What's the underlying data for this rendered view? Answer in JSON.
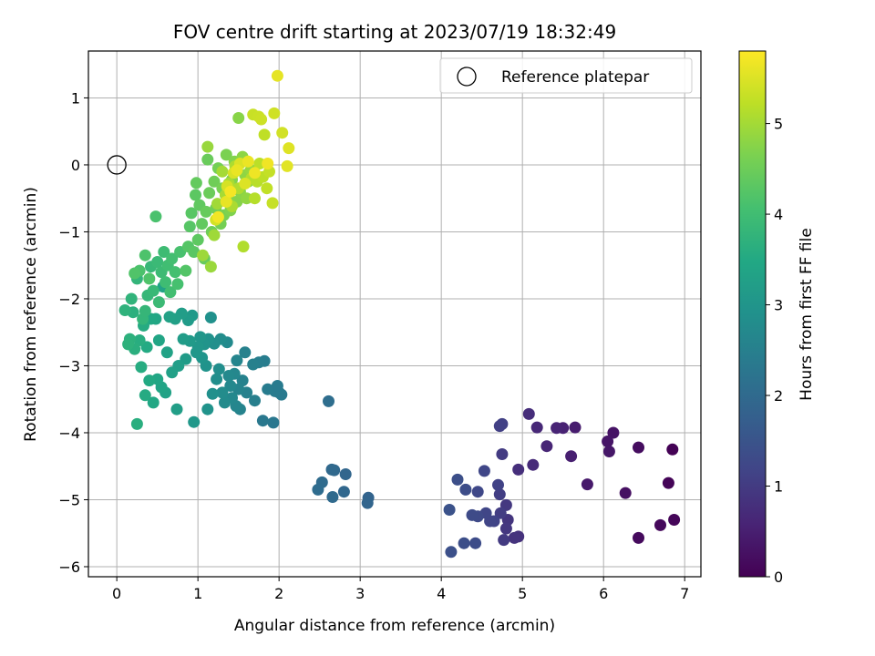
{
  "chart_data": {
    "type": "scatter",
    "title": "FOV centre drift starting at 2023/07/19 18:32:49",
    "xlabel": "Angular distance from reference (arcmin)",
    "ylabel": "Rotation from reference (arcmin)",
    "colorbar_label": "Hours from first FF file",
    "colormap": "viridis",
    "xlim": [
      -0.35,
      7.2
    ],
    "ylim": [
      -6.15,
      1.7
    ],
    "xticks": [
      0,
      1,
      2,
      3,
      4,
      5,
      6,
      7
    ],
    "yticks": [
      -6,
      -5,
      -4,
      -3,
      -2,
      -1,
      0,
      1
    ],
    "clim": [
      0,
      5.8
    ],
    "cticks": [
      0,
      1,
      2,
      3,
      4,
      5
    ],
    "grid": true,
    "legend": {
      "placement": "top-right",
      "entries": [
        "Reference platepar"
      ]
    },
    "reference": {
      "x": 0,
      "y": 0
    },
    "points": [
      [
        6.85,
        -4.25,
        0.02
      ],
      [
        6.8,
        -4.75,
        0.05
      ],
      [
        6.87,
        -5.3,
        0.08
      ],
      [
        6.7,
        -5.38,
        0.12
      ],
      [
        6.43,
        -5.57,
        0.15
      ],
      [
        6.43,
        -4.22,
        0.2
      ],
      [
        6.27,
        -4.9,
        0.25
      ],
      [
        6.12,
        -4.0,
        0.3
      ],
      [
        6.05,
        -4.13,
        0.33
      ],
      [
        6.07,
        -4.28,
        0.36
      ],
      [
        5.8,
        -4.77,
        0.4
      ],
      [
        5.65,
        -3.92,
        0.45
      ],
      [
        5.6,
        -4.35,
        0.5
      ],
      [
        5.5,
        -3.93,
        0.55
      ],
      [
        5.42,
        -3.93,
        0.58
      ],
      [
        5.3,
        -4.2,
        0.62
      ],
      [
        5.18,
        -3.92,
        0.66
      ],
      [
        5.13,
        -4.48,
        0.7
      ],
      [
        5.08,
        -3.72,
        0.74
      ],
      [
        4.95,
        -4.55,
        0.78
      ],
      [
        4.95,
        -5.55,
        0.82
      ],
      [
        4.9,
        -5.57,
        0.85
      ],
      [
        4.82,
        -5.3,
        0.88
      ],
      [
        4.8,
        -5.43,
        0.92
      ],
      [
        4.8,
        -5.08,
        0.95
      ],
      [
        4.77,
        -5.6,
        0.98
      ],
      [
        4.75,
        -4.32,
        1.0
      ],
      [
        4.73,
        -5.2,
        1.03
      ],
      [
        4.72,
        -4.92,
        1.06
      ],
      [
        4.72,
        -3.9,
        1.08
      ],
      [
        4.75,
        -3.87,
        1.1
      ],
      [
        4.7,
        -4.78,
        1.12
      ],
      [
        4.65,
        -5.32,
        1.15
      ],
      [
        4.6,
        -5.32,
        1.18
      ],
      [
        4.55,
        -5.2,
        1.2
      ],
      [
        4.53,
        -4.57,
        1.22
      ],
      [
        4.45,
        -4.88,
        1.25
      ],
      [
        4.45,
        -5.25,
        1.28
      ],
      [
        4.38,
        -5.23,
        1.3
      ],
      [
        4.42,
        -5.65,
        1.33
      ],
      [
        4.3,
        -4.85,
        1.36
      ],
      [
        4.28,
        -5.65,
        1.38
      ],
      [
        4.2,
        -4.7,
        1.4
      ],
      [
        4.12,
        -5.78,
        1.42
      ],
      [
        4.1,
        -5.15,
        1.45
      ],
      [
        3.1,
        -4.97,
        1.85
      ],
      [
        3.09,
        -5.05,
        1.88
      ],
      [
        2.82,
        -4.62,
        1.9
      ],
      [
        2.8,
        -4.88,
        1.93
      ],
      [
        2.68,
        -4.56,
        1.95
      ],
      [
        2.65,
        -4.55,
        1.97
      ],
      [
        2.66,
        -4.96,
        1.99
      ],
      [
        2.53,
        -4.74,
        2.02
      ],
      [
        2.48,
        -4.85,
        2.04
      ],
      [
        2.61,
        -3.53,
        2.08
      ],
      [
        1.93,
        -3.85,
        2.3
      ],
      [
        1.8,
        -3.82,
        2.32
      ],
      [
        2.0,
        -3.4,
        2.34
      ],
      [
        2.03,
        -3.43,
        2.36
      ],
      [
        1.95,
        -3.38,
        2.38
      ],
      [
        1.98,
        -3.3,
        2.4
      ],
      [
        1.86,
        -3.35,
        2.42
      ],
      [
        1.82,
        -2.93,
        2.44
      ],
      [
        1.75,
        -2.95,
        2.46
      ],
      [
        1.7,
        -3.52,
        2.48
      ],
      [
        1.68,
        -2.98,
        2.5
      ],
      [
        1.6,
        -3.4,
        2.52
      ],
      [
        1.58,
        -2.8,
        2.54
      ],
      [
        1.55,
        -3.22,
        2.56
      ],
      [
        1.52,
        -3.65,
        2.58
      ],
      [
        1.5,
        -3.35,
        2.6
      ],
      [
        1.48,
        -2.92,
        2.62
      ],
      [
        1.47,
        -3.6,
        2.64
      ],
      [
        1.45,
        -3.12,
        2.66
      ],
      [
        1.42,
        -3.48,
        2.68
      ],
      [
        1.4,
        -3.3,
        2.7
      ],
      [
        1.38,
        -3.15,
        2.72
      ],
      [
        1.36,
        -2.65,
        2.74
      ],
      [
        1.33,
        -3.55,
        2.76
      ],
      [
        1.3,
        -3.4,
        2.78
      ],
      [
        1.28,
        -2.6,
        2.8
      ],
      [
        1.26,
        -3.05,
        2.82
      ],
      [
        1.23,
        -3.2,
        2.84
      ],
      [
        1.2,
        -2.67,
        2.86
      ],
      [
        1.18,
        -3.42,
        2.88
      ],
      [
        1.16,
        -2.28,
        2.9
      ],
      [
        1.13,
        -2.6,
        2.92
      ],
      [
        1.12,
        -3.65,
        2.94
      ],
      [
        1.1,
        -3.0,
        2.96
      ],
      [
        1.08,
        -2.68,
        2.98
      ],
      [
        1.05,
        -2.88,
        3.0
      ],
      [
        1.03,
        -2.57,
        3.02
      ],
      [
        1.0,
        -2.72,
        3.04
      ],
      [
        0.98,
        -2.8,
        3.06
      ],
      [
        0.95,
        -3.84,
        3.08
      ],
      [
        0.93,
        -2.25,
        3.1
      ],
      [
        0.9,
        -2.63,
        3.12
      ],
      [
        0.88,
        -2.32,
        3.14
      ],
      [
        0.85,
        -2.9,
        3.16
      ],
      [
        0.82,
        -2.6,
        3.18
      ],
      [
        0.8,
        -2.22,
        3.2
      ],
      [
        0.76,
        -3.0,
        3.22
      ],
      [
        0.74,
        -3.65,
        3.24
      ],
      [
        0.72,
        -2.3,
        3.26
      ],
      [
        0.68,
        -3.1,
        3.28
      ],
      [
        0.65,
        -2.27,
        3.3
      ],
      [
        0.62,
        -2.8,
        3.32
      ],
      [
        0.6,
        -3.4,
        3.34
      ],
      [
        0.57,
        -1.82,
        3.36
      ],
      [
        0.55,
        -3.32,
        3.38
      ],
      [
        0.52,
        -2.62,
        3.4
      ],
      [
        0.5,
        -3.2,
        3.42
      ],
      [
        0.48,
        -2.3,
        3.44
      ],
      [
        0.45,
        -3.55,
        3.46
      ],
      [
        0.42,
        -2.3,
        3.48
      ],
      [
        0.4,
        -3.22,
        3.5
      ],
      [
        0.37,
        -2.72,
        3.52
      ],
      [
        0.35,
        -3.44,
        3.54
      ],
      [
        0.33,
        -2.4,
        3.56
      ],
      [
        0.3,
        -3.02,
        3.58
      ],
      [
        0.28,
        -2.62,
        3.6
      ],
      [
        0.25,
        -3.87,
        3.62
      ],
      [
        0.22,
        -2.75,
        3.64
      ],
      [
        0.2,
        -2.2,
        3.66
      ],
      [
        0.16,
        -2.6,
        3.68
      ],
      [
        0.14,
        -2.68,
        3.7
      ],
      [
        0.1,
        -2.17,
        3.72
      ],
      [
        0.18,
        -2.0,
        3.75
      ],
      [
        0.25,
        -1.7,
        3.78
      ],
      [
        0.32,
        -2.3,
        3.8
      ],
      [
        0.35,
        -2.18,
        3.82
      ],
      [
        0.38,
        -1.95,
        3.84
      ],
      [
        0.42,
        -1.52,
        3.86
      ],
      [
        0.45,
        -1.88,
        3.88
      ],
      [
        0.5,
        -1.45,
        3.9
      ],
      [
        0.52,
        -2.05,
        3.92
      ],
      [
        0.55,
        -1.6,
        3.94
      ],
      [
        0.58,
        -1.3,
        3.96
      ],
      [
        0.6,
        -1.75,
        3.98
      ],
      [
        0.63,
        -1.5,
        4.0
      ],
      [
        0.66,
        -1.9,
        4.02
      ],
      [
        0.68,
        -1.4,
        4.04
      ],
      [
        0.72,
        -1.6,
        4.06
      ],
      [
        0.75,
        -1.78,
        4.08
      ],
      [
        0.78,
        -1.3,
        4.1
      ],
      [
        0.48,
        -0.77,
        4.12
      ],
      [
        0.28,
        -1.58,
        4.14
      ],
      [
        0.35,
        -1.35,
        4.16
      ],
      [
        0.4,
        -1.7,
        4.18
      ],
      [
        0.22,
        -1.62,
        4.2
      ],
      [
        0.85,
        -1.58,
        4.22
      ],
      [
        0.88,
        -1.22,
        4.24
      ],
      [
        0.9,
        -0.92,
        4.26
      ],
      [
        0.92,
        -0.72,
        4.28
      ],
      [
        0.95,
        -1.3,
        4.3
      ],
      [
        0.97,
        -0.45,
        4.32
      ],
      [
        1.0,
        -1.12,
        4.34
      ],
      [
        1.02,
        -0.6,
        4.36
      ],
      [
        1.05,
        -0.88,
        4.38
      ],
      [
        0.98,
        -0.27,
        4.4
      ],
      [
        1.08,
        -1.4,
        4.42
      ],
      [
        1.1,
        -0.7,
        4.44
      ],
      [
        1.12,
        0.08,
        4.46
      ],
      [
        1.14,
        -0.42,
        4.48
      ],
      [
        1.17,
        -1.0,
        4.5
      ],
      [
        1.2,
        -0.25,
        4.52
      ],
      [
        1.22,
        -0.65,
        4.54
      ],
      [
        1.25,
        -0.05,
        4.56
      ],
      [
        1.28,
        -0.88,
        4.58
      ],
      [
        1.3,
        -0.35,
        4.6
      ],
      [
        1.32,
        -0.75,
        4.62
      ],
      [
        1.35,
        0.15,
        4.64
      ],
      [
        1.38,
        -0.48,
        4.66
      ],
      [
        1.4,
        -0.68,
        4.68
      ],
      [
        1.42,
        -0.22,
        4.7
      ],
      [
        1.45,
        0.05,
        4.72
      ],
      [
        1.48,
        -0.55,
        4.74
      ],
      [
        1.5,
        0.7,
        4.76
      ],
      [
        1.52,
        -0.4,
        4.78
      ],
      [
        1.55,
        0.12,
        4.8
      ],
      [
        1.58,
        -0.15,
        4.82
      ],
      [
        1.6,
        -0.5,
        4.84
      ],
      [
        1.62,
        -0.25,
        4.86
      ],
      [
        1.65,
        -0.08,
        4.88
      ],
      [
        1.12,
        0.27,
        4.9
      ],
      [
        1.16,
        -1.52,
        4.92
      ],
      [
        1.06,
        -1.35,
        4.94
      ],
      [
        1.2,
        -1.05,
        4.96
      ],
      [
        1.24,
        -0.58,
        4.98
      ],
      [
        1.3,
        -0.1,
        5.0
      ],
      [
        1.34,
        -0.45,
        5.02
      ],
      [
        1.38,
        -0.28,
        5.04
      ],
      [
        1.42,
        -0.62,
        5.06
      ],
      [
        1.46,
        -0.02,
        5.08
      ],
      [
        1.5,
        -0.35,
        5.1
      ],
      [
        1.56,
        -1.22,
        5.12
      ],
      [
        1.66,
        -0.2,
        5.14
      ],
      [
        1.7,
        -0.5,
        5.16
      ],
      [
        1.73,
        -0.25,
        5.18
      ],
      [
        1.76,
        0.02,
        5.2
      ],
      [
        1.8,
        -0.18,
        5.22
      ],
      [
        1.82,
        0.45,
        5.24
      ],
      [
        1.85,
        -0.35,
        5.26
      ],
      [
        1.88,
        -0.1,
        5.28
      ],
      [
        1.92,
        -0.57,
        5.3
      ],
      [
        1.68,
        0.75,
        5.32
      ],
      [
        1.75,
        0.72,
        5.34
      ],
      [
        1.78,
        0.68,
        5.36
      ],
      [
        1.94,
        0.77,
        5.38
      ],
      [
        2.04,
        0.48,
        5.4
      ],
      [
        1.22,
        -0.82,
        5.42
      ],
      [
        1.36,
        -0.32,
        5.44
      ],
      [
        1.44,
        -0.12,
        5.46
      ],
      [
        1.52,
        0.02,
        5.48
      ],
      [
        1.58,
        -0.28,
        5.5
      ],
      [
        2.12,
        0.25,
        5.52
      ],
      [
        2.1,
        -0.02,
        5.55
      ],
      [
        1.98,
        1.33,
        5.58
      ],
      [
        1.35,
        -0.55,
        5.6
      ],
      [
        1.48,
        -0.08,
        5.62
      ],
      [
        1.62,
        0.05,
        5.64
      ],
      [
        1.7,
        -0.12,
        5.66
      ],
      [
        1.86,
        0.02,
        5.68
      ],
      [
        1.25,
        -0.78,
        5.7
      ],
      [
        1.4,
        -0.4,
        5.72
      ]
    ]
  }
}
